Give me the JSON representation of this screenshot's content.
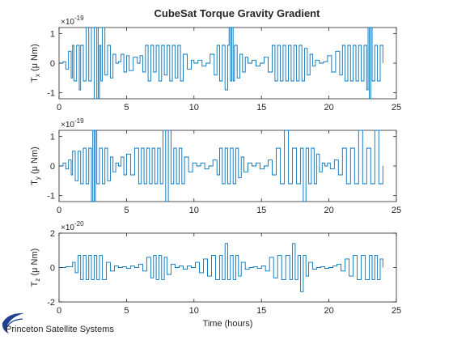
{
  "figure": {
    "title": "CubeSat Torque Gravity Gradient",
    "logo_text": "Princeton Satellite Systems",
    "colors": {
      "series": "#0072BD",
      "axes": "#262626",
      "background": "#ffffff",
      "logo": "#1f3f8f"
    }
  },
  "chart_data": [
    {
      "type": "line",
      "name": "tx-panel",
      "title": "CubeSat Torque Gravity Gradient",
      "xlabel": "",
      "ylabel": "T_x (μ Nm)",
      "ylabel_main": "T",
      "ylabel_sub": "x",
      "ylabel_unit": "(μ Nm)",
      "exponent_label": "×10",
      "exponent_power": "-19",
      "xlim": [
        0,
        25
      ],
      "ylim": [
        -1.2,
        1.2
      ],
      "xticks": [
        0,
        5,
        10,
        15,
        20,
        25
      ],
      "yticks": [
        -1,
        0,
        1
      ],
      "xtick_labels": [
        "0",
        "5",
        "10",
        "15",
        "20",
        "25"
      ],
      "ytick_labels": [
        "-1",
        "0",
        "1"
      ],
      "grid": false,
      "series": [
        {
          "x": [
            0.0,
            0.3,
            0.5,
            0.7,
            0.9,
            1.0,
            1.1,
            1.3,
            1.5,
            1.6,
            1.8,
            2.0,
            2.2,
            2.4,
            2.6,
            2.8,
            2.9,
            3.0,
            3.1,
            3.2,
            3.4,
            3.6,
            3.8,
            4.0,
            4.2,
            4.4,
            4.6,
            4.8,
            5.0,
            5.2,
            5.5,
            5.8,
            6.0,
            6.2,
            6.4,
            6.6,
            6.8,
            7.0,
            7.2,
            7.4,
            7.6,
            7.8,
            8.0,
            8.2,
            8.4,
            8.6,
            8.8,
            9.0,
            9.2,
            9.5,
            9.8,
            10.0,
            10.3,
            10.6,
            10.9,
            11.2,
            11.5,
            11.7,
            11.9,
            12.1,
            12.3,
            12.5,
            12.6,
            12.7,
            12.8,
            12.9,
            13.0,
            13.2,
            13.4,
            13.6,
            13.8,
            14.0,
            14.3,
            14.6,
            14.9,
            15.2,
            15.5,
            15.8,
            16.0,
            16.2,
            16.4,
            16.6,
            16.8,
            17.0,
            17.2,
            17.4,
            17.6,
            17.8,
            18.0,
            18.2,
            18.4,
            18.6,
            18.8,
            19.0,
            19.3,
            19.6,
            19.9,
            20.2,
            20.5,
            20.8,
            21.0,
            21.2,
            21.4,
            21.6,
            21.8,
            22.0,
            22.2,
            22.4,
            22.6,
            22.8,
            22.9,
            23.0,
            23.1,
            23.2,
            23.4,
            23.6,
            23.8,
            24.0
          ],
          "y": [
            0.0,
            0.05,
            -0.2,
            0.4,
            -0.5,
            0.6,
            -0.6,
            0.6,
            -0.9,
            0.6,
            -0.6,
            1.2,
            -0.6,
            1.2,
            -1.2,
            1.2,
            -1.2,
            0.6,
            -0.6,
            1.2,
            -0.4,
            0.6,
            -0.5,
            0.3,
            0.0,
            0.05,
            0.3,
            -0.3,
            0.25,
            -0.25,
            0.2,
            0.0,
            0.25,
            -0.3,
            0.6,
            -0.6,
            0.6,
            -0.3,
            0.6,
            -0.6,
            0.6,
            -0.4,
            0.6,
            -0.6,
            0.6,
            -0.5,
            0.6,
            -0.6,
            0.3,
            -0.2,
            0.1,
            0.0,
            0.1,
            -0.1,
            0.0,
            0.3,
            -0.4,
            0.6,
            -0.6,
            0.6,
            -0.9,
            0.6,
            1.2,
            -0.6,
            1.2,
            -0.6,
            0.6,
            -0.5,
            0.3,
            -0.3,
            0.2,
            0.0,
            0.1,
            -0.1,
            0.0,
            0.2,
            -0.3,
            0.6,
            -0.6,
            0.6,
            -0.6,
            0.6,
            -0.6,
            0.6,
            -0.6,
            0.6,
            -0.6,
            0.6,
            -0.6,
            0.5,
            -0.4,
            0.3,
            -0.1,
            0.1,
            0.0,
            0.05,
            0.25,
            -0.3,
            0.4,
            -0.4,
            0.6,
            -0.6,
            0.6,
            -0.6,
            0.6,
            -0.6,
            0.6,
            -0.6,
            0.6,
            -0.9,
            1.2,
            -1.2,
            1.2,
            -0.6,
            0.6,
            -0.6,
            0.6,
            0.0
          ]
        }
      ]
    },
    {
      "type": "line",
      "name": "ty-panel",
      "xlabel": "",
      "ylabel": "T_y (μ Nm)",
      "ylabel_main": "T",
      "ylabel_sub": "y",
      "ylabel_unit": "(μ Nm)",
      "exponent_label": "×10",
      "exponent_power": "-19",
      "xlim": [
        0,
        25
      ],
      "ylim": [
        -1.2,
        1.2
      ],
      "xticks": [
        0,
        5,
        10,
        15,
        20,
        25
      ],
      "yticks": [
        -1,
        0,
        1
      ],
      "xtick_labels": [
        "0",
        "5",
        "10",
        "15",
        "20",
        "25"
      ],
      "ytick_labels": [
        "-1",
        "0",
        "1"
      ],
      "grid": false,
      "series": [
        {
          "x": [
            0.0,
            0.3,
            0.5,
            0.7,
            0.9,
            1.0,
            1.2,
            1.4,
            1.6,
            1.8,
            2.0,
            2.2,
            2.4,
            2.5,
            2.6,
            2.7,
            2.8,
            3.0,
            3.2,
            3.4,
            3.6,
            3.8,
            4.0,
            4.2,
            4.4,
            4.6,
            4.8,
            5.0,
            5.3,
            5.6,
            5.9,
            6.1,
            6.3,
            6.5,
            6.7,
            6.9,
            7.1,
            7.3,
            7.5,
            7.7,
            7.9,
            8.1,
            8.3,
            8.5,
            8.7,
            8.9,
            9.1,
            9.3,
            9.6,
            9.9,
            10.2,
            10.5,
            10.8,
            11.1,
            11.4,
            11.7,
            11.9,
            12.1,
            12.3,
            12.5,
            12.7,
            12.9,
            13.1,
            13.3,
            13.5,
            13.7,
            14.0,
            14.3,
            14.6,
            14.9,
            15.2,
            15.5,
            15.8,
            16.1,
            16.4,
            16.7,
            17.0,
            17.3,
            17.6,
            17.9,
            18.1,
            18.3,
            18.5,
            18.7,
            18.9,
            19.1,
            19.3,
            19.5,
            19.7,
            19.9,
            20.1,
            20.4,
            20.7,
            21.0,
            21.3,
            21.6,
            21.9,
            22.2,
            22.5,
            22.8,
            23.1,
            23.4,
            23.7,
            24.0
          ],
          "y": [
            0.0,
            0.1,
            -0.1,
            0.2,
            -0.3,
            0.5,
            -0.5,
            0.5,
            -0.6,
            0.6,
            -0.6,
            0.6,
            -1.2,
            1.2,
            -1.2,
            1.2,
            -0.6,
            0.6,
            -0.6,
            0.6,
            -0.5,
            0.3,
            -0.2,
            0.1,
            0.0,
            0.3,
            -0.3,
            0.4,
            -0.3,
            0.6,
            -0.6,
            0.6,
            -0.6,
            0.6,
            -0.6,
            0.6,
            -0.6,
            0.6,
            -0.6,
            1.2,
            -1.2,
            1.2,
            -0.6,
            0.6,
            -0.6,
            0.6,
            -0.6,
            0.3,
            -0.2,
            0.1,
            0.0,
            0.1,
            -0.1,
            0.0,
            0.2,
            -0.3,
            0.6,
            -0.6,
            0.6,
            -0.6,
            0.6,
            -0.6,
            0.6,
            -0.4,
            0.3,
            -0.2,
            0.1,
            0.0,
            0.1,
            -0.1,
            0.0,
            0.2,
            -0.3,
            0.6,
            -0.6,
            1.2,
            -0.6,
            0.6,
            -0.6,
            0.6,
            -1.2,
            0.6,
            -0.6,
            0.6,
            -0.6,
            0.4,
            -0.2,
            0.1,
            0.0,
            0.1,
            -0.1,
            0.2,
            -0.3,
            0.6,
            -0.6,
            0.6,
            -0.6,
            1.2,
            -0.6,
            0.6,
            -0.6,
            1.2,
            -0.6,
            0.0
          ]
        }
      ]
    },
    {
      "type": "line",
      "name": "tz-panel",
      "xlabel": "Time (hours)",
      "ylabel": "T_z (μ Nm)",
      "ylabel_main": "T",
      "ylabel_sub": "z",
      "ylabel_unit": "(μ Nm)",
      "exponent_label": "×10",
      "exponent_power": "-20",
      "xlim": [
        0,
        25
      ],
      "ylim": [
        -2,
        2
      ],
      "xticks": [
        0,
        5,
        10,
        15,
        20,
        25
      ],
      "yticks": [
        -2,
        0,
        2
      ],
      "xtick_labels": [
        "0",
        "5",
        "10",
        "15",
        "20",
        "25"
      ],
      "ytick_labels": [
        "-2",
        "0",
        "2"
      ],
      "grid": false,
      "series": [
        {
          "x": [
            0.0,
            0.5,
            1.0,
            1.2,
            1.4,
            1.6,
            1.8,
            2.0,
            2.2,
            2.4,
            2.6,
            2.8,
            3.0,
            3.2,
            3.5,
            3.8,
            4.1,
            4.4,
            4.7,
            5.0,
            5.3,
            5.6,
            5.9,
            6.2,
            6.5,
            6.8,
            7.0,
            7.2,
            7.4,
            7.6,
            7.8,
            8.0,
            8.3,
            8.6,
            8.9,
            9.2,
            9.5,
            9.8,
            10.1,
            10.4,
            10.7,
            11.0,
            11.3,
            11.6,
            11.9,
            12.1,
            12.3,
            12.5,
            12.7,
            12.9,
            13.1,
            13.3,
            13.5,
            13.8,
            14.1,
            14.4,
            14.7,
            15.0,
            15.3,
            15.6,
            15.9,
            16.2,
            16.5,
            16.8,
            17.1,
            17.3,
            17.5,
            17.7,
            17.9,
            18.1,
            18.3,
            18.5,
            18.8,
            19.1,
            19.4,
            19.7,
            20.0,
            20.3,
            20.6,
            20.9,
            21.2,
            21.5,
            21.8,
            22.1,
            22.4,
            22.7,
            23.0,
            23.2,
            23.4,
            23.6,
            23.8,
            24.0
          ],
          "y": [
            0.0,
            0.05,
            0.3,
            -0.3,
            0.7,
            -0.7,
            0.7,
            -0.7,
            0.7,
            -0.7,
            0.7,
            -0.7,
            0.7,
            -0.7,
            0.3,
            -0.2,
            0.1,
            0.0,
            0.05,
            -0.05,
            0.1,
            0.0,
            0.2,
            -0.2,
            0.6,
            -0.6,
            0.7,
            -0.7,
            0.7,
            -0.7,
            0.6,
            -0.4,
            0.2,
            0.0,
            0.1,
            -0.1,
            0.1,
            0.0,
            0.3,
            -0.3,
            0.5,
            -0.5,
            0.7,
            -0.7,
            0.7,
            -0.7,
            1.4,
            -0.7,
            0.7,
            -0.7,
            0.7,
            -0.5,
            0.3,
            -0.1,
            0.0,
            0.05,
            -0.05,
            0.1,
            -0.2,
            0.6,
            -0.6,
            0.7,
            -0.7,
            0.7,
            -0.7,
            1.4,
            -0.7,
            0.7,
            -1.4,
            0.7,
            -0.5,
            0.3,
            -0.1,
            0.0,
            0.05,
            -0.05,
            0.0,
            0.1,
            0.2,
            -0.2,
            0.5,
            -0.5,
            0.7,
            -0.7,
            0.7,
            -0.7,
            0.7,
            -0.7,
            0.7,
            -0.7,
            0.5,
            0.0
          ]
        }
      ]
    }
  ]
}
